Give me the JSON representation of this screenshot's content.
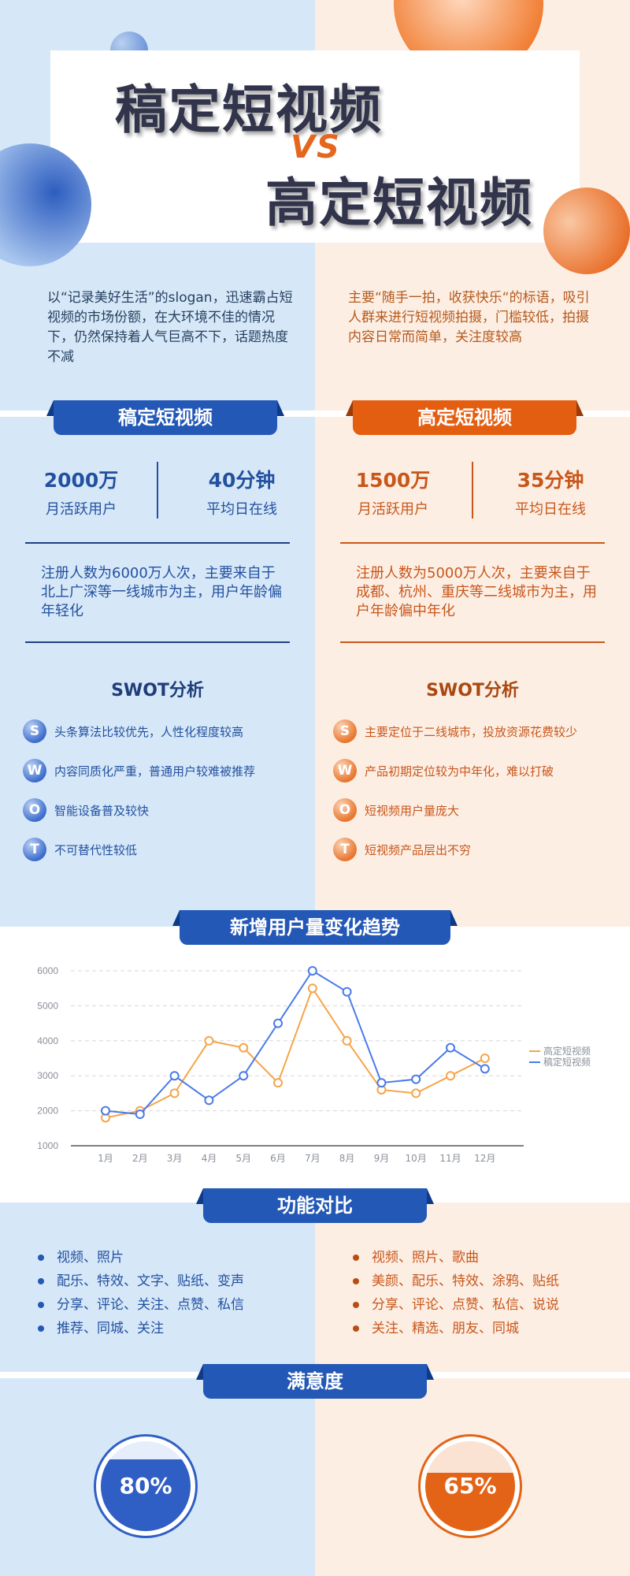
{
  "header": {
    "title_top": "稿定短视频",
    "vs": "VS",
    "title_bottom": "高定短视频"
  },
  "intro": {
    "left": "以“记录美好生活”的slogan，迅速霸占短视频的市场份额，在大环境不佳的情况下，仍然保持着人气巨高不下，话题热度不减",
    "right": "主要“随手一拍，收获快乐“的标语，吸引人群来进行短视频拍摄，门槛较低，拍摄内容日常而简单，关注度较高"
  },
  "left": {
    "banner": "稿定短视频",
    "stat1_value": "2000万",
    "stat1_label": "月活跃用户",
    "stat2_value": "40分钟",
    "stat2_label": "平均日在线",
    "desc": "注册人数为6000万人次，主要来自于北上广深等一线城市为主，用户年龄偏年轻化",
    "swot_title": "SWOT分析",
    "swot": [
      {
        "letter": "S",
        "text": "头条算法比较优先，人性化程度较高"
      },
      {
        "letter": "W",
        "text": "内容同质化严重，普通用户较难被推荐"
      },
      {
        "letter": "O",
        "text": "智能设备普及较快"
      },
      {
        "letter": "T",
        "text": "不可替代性较低"
      }
    ],
    "features": [
      "视频、照片",
      "配乐、特效、文字、贴纸、变声",
      "分享、评论、关注、点赞、私信",
      "推荐、同城、关注"
    ],
    "satisfaction": "80%",
    "satisfaction_value": 0.8,
    "color": "#2358b6"
  },
  "right": {
    "banner": "高定短视频",
    "stat1_value": "1500万",
    "stat1_label": "月活跃用户",
    "stat2_value": "35分钟",
    "stat2_label": "平均日在线",
    "desc": "注册人数为5000万人次，主要来自于成都、杭州、重庆等二线城市为主，用户年龄偏中年化",
    "swot_title": "SWOT分析",
    "swot": [
      {
        "letter": "S",
        "text": "主要定位于二线城市，投放资源花费较少"
      },
      {
        "letter": "W",
        "text": "产品初期定位较为中年化，难以打破"
      },
      {
        "letter": "O",
        "text": "短视频用户量庞大"
      },
      {
        "letter": "T",
        "text": "短视频产品层出不穷"
      }
    ],
    "features": [
      "视频、照片、歌曲",
      "美颜、配乐、特效、涂鸦、贴纸",
      "分享、评论、点赞、私信、说说",
      "关注、精选、朋友、同城"
    ],
    "satisfaction": "65%",
    "satisfaction_value": 0.65,
    "color": "#e45e12"
  },
  "sections": {
    "trend": "新增用户量变化趋势",
    "features": "功能对比",
    "satisfaction": "满意度"
  },
  "chart_data": {
    "type": "line",
    "title": "新增用户量变化趋势",
    "xlabel": "",
    "ylabel": "",
    "categories": [
      "1月",
      "2月",
      "3月",
      "4月",
      "5月",
      "6月",
      "7月",
      "8月",
      "9月",
      "10月",
      "11月",
      "12月"
    ],
    "yticks": [
      1000,
      2000,
      3000,
      4000,
      5000,
      6000
    ],
    "ylim": [
      1000,
      6000
    ],
    "grid": true,
    "legend": "right",
    "series": [
      {
        "name": "高定短视频",
        "color": "#f5a54a",
        "values": [
          1800,
          2000,
          2500,
          4000,
          3800,
          2800,
          5500,
          4000,
          2600,
          2500,
          3000,
          3500
        ]
      },
      {
        "name": "稿定短视频",
        "color": "#4a7be8",
        "values": [
          2000,
          1900,
          3000,
          2300,
          3000,
          4500,
          6000,
          5400,
          2800,
          2900,
          3800,
          3200
        ]
      }
    ]
  }
}
